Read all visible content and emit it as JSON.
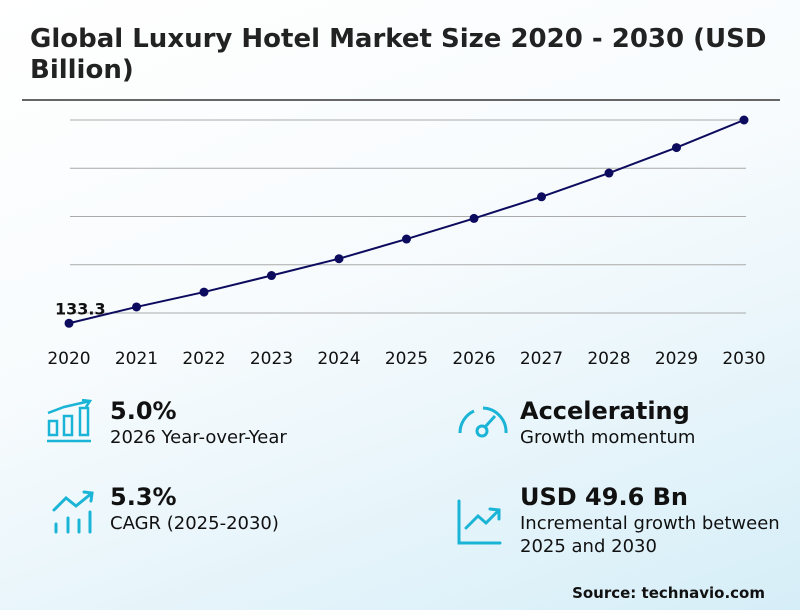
{
  "title": "Global Luxury Hotel Market Size 2020 - 2030 (USD Billion)",
  "chart_data": {
    "type": "line",
    "title": "Global Luxury Hotel Market Size 2020 - 2030 (USD Billion)",
    "x": [
      "2020",
      "2021",
      "2022",
      "2023",
      "2024",
      "2025",
      "2026",
      "2027",
      "2028",
      "2029",
      "2030"
    ],
    "series": [
      {
        "values": [
          133.3,
          140.1,
          146.3,
          153.2,
          160.2,
          168.4,
          177.0,
          186.0,
          195.9,
          206.5,
          218.0
        ]
      }
    ],
    "data_labels": [
      {
        "index": 0,
        "text": "133.3"
      }
    ],
    "ylim": [
      128,
      218
    ],
    "gridlines": [
      137.6,
      157.7,
      177.8,
      197.9,
      218.0
    ],
    "grid": true,
    "y_tick_labels_shown": false,
    "line_color": "#0d0b5e",
    "grid_color": "#aaaaaa"
  },
  "stats": [
    {
      "value": "5.0%",
      "label": "2026 Year-over-Year",
      "icon": "bar-chart-growth-icon"
    },
    {
      "value": "Accelerating",
      "label": "Growth momentum",
      "icon": "speedometer-icon"
    },
    {
      "value": "5.3%",
      "label": "CAGR (2025-2030)",
      "icon": "trend-up-bars-icon"
    },
    {
      "value": "USD 49.6 Bn",
      "label": "Incremental growth between 2025 and 2030",
      "icon": "line-chart-up-icon"
    }
  ],
  "accent_color": "#1ab4d6",
  "source": "Source: technavio.com"
}
